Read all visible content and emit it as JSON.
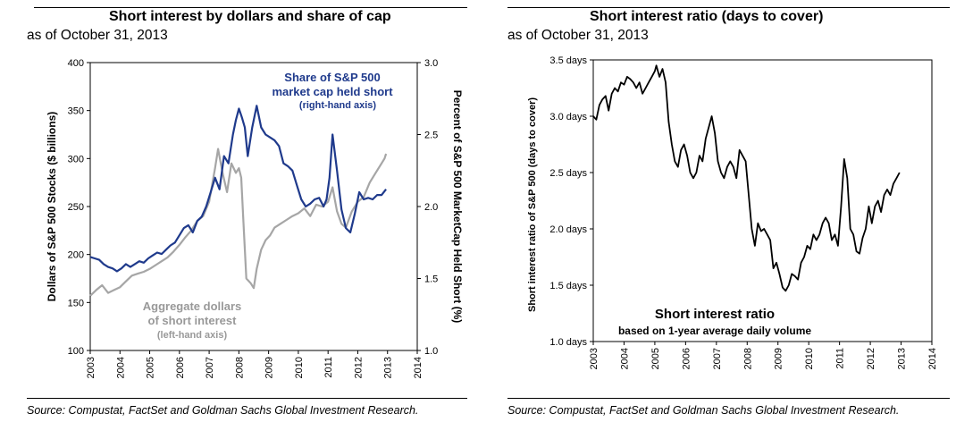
{
  "left_panel": {
    "title": "Short interest by dollars and share of cap",
    "subtitle": "as of October 31, 2013",
    "source": "Source: Compustat, FactSet and Goldman Sachs Global Investment Research."
  },
  "right_panel": {
    "title": "Short interest ratio (days to cover)",
    "subtitle": "as of October 31, 2013",
    "source": "Source: Compustat, FactSet and Goldman Sachs Global Investment Research."
  },
  "colors": {
    "navy": "#1f3a8c",
    "gray": "#a6a6a6",
    "black": "#000000"
  },
  "chart_data": [
    {
      "type": "line",
      "title": "Short interest by dollars and share of cap",
      "xlabel": "",
      "ylabel": "Dollars of S&P 500 Stocks ($ billions)",
      "y2label": "Percent of S&P 500 MarketCap Held Short (%)",
      "xlim": [
        2003,
        2014
      ],
      "ylim": [
        100,
        400
      ],
      "y2lim": [
        1.0,
        3.0
      ],
      "xticks": [
        "2003",
        "2004",
        "2005",
        "2006",
        "2007",
        "2008",
        "2009",
        "2010",
        "2011",
        "2012",
        "2013",
        "2014"
      ],
      "yticks": [
        "100",
        "150",
        "200",
        "250",
        "300",
        "350",
        "400"
      ],
      "y2ticks": [
        "1.0",
        "1.5",
        "2.0",
        "2.5",
        "3.0"
      ],
      "grid": false,
      "annotations": {
        "share_l1": "Share of S&P 500",
        "share_l2": "market cap held short",
        "share_l3": "(right-hand axis)",
        "agg_l1": "Aggregate dollars",
        "agg_l2": "of short interest",
        "agg_l3": "(left-hand axis)"
      },
      "series": [
        {
          "name": "Share of S&P 500 market cap held short",
          "axis": "right",
          "color": "#1f3a8c",
          "x": [
            2003.0,
            2003.15,
            2003.3,
            2003.45,
            2003.6,
            2003.75,
            2003.9,
            2004.05,
            2004.2,
            2004.35,
            2004.5,
            2004.65,
            2004.8,
            2004.95,
            2005.1,
            2005.25,
            2005.4,
            2005.55,
            2005.7,
            2005.85,
            2006.0,
            2006.15,
            2006.3,
            2006.45,
            2006.6,
            2006.75,
            2006.9,
            2007.05,
            2007.2,
            2007.35,
            2007.5,
            2007.65,
            2007.8,
            2007.9,
            2008.0,
            2008.1,
            2008.2,
            2008.3,
            2008.45,
            2008.6,
            2008.75,
            2008.9,
            2009.05,
            2009.2,
            2009.35,
            2009.5,
            2009.65,
            2009.8,
            2009.95,
            2010.1,
            2010.25,
            2010.4,
            2010.55,
            2010.7,
            2010.85,
            2010.95,
            2011.05,
            2011.15,
            2011.3,
            2011.45,
            2011.6,
            2011.75,
            2011.9,
            2012.05,
            2012.2,
            2012.35,
            2012.5,
            2012.65,
            2012.8,
            2012.95
          ],
          "values": [
            1.65,
            1.64,
            1.63,
            1.6,
            1.58,
            1.57,
            1.55,
            1.57,
            1.6,
            1.58,
            1.6,
            1.62,
            1.61,
            1.64,
            1.66,
            1.68,
            1.67,
            1.7,
            1.73,
            1.75,
            1.8,
            1.85,
            1.87,
            1.82,
            1.9,
            1.93,
            2.0,
            2.1,
            2.2,
            2.12,
            2.35,
            2.3,
            2.5,
            2.6,
            2.68,
            2.62,
            2.55,
            2.35,
            2.55,
            2.7,
            2.55,
            2.5,
            2.48,
            2.46,
            2.42,
            2.3,
            2.28,
            2.25,
            2.15,
            2.05,
            2.0,
            2.02,
            2.05,
            2.06,
            2.0,
            2.05,
            2.2,
            2.5,
            2.25,
            1.98,
            1.85,
            1.82,
            1.95,
            2.1,
            2.05,
            2.06,
            2.05,
            2.08,
            2.08,
            2.12
          ]
        },
        {
          "name": "Aggregate dollars of short interest",
          "axis": "left",
          "color": "#a6a6a6",
          "x": [
            2003.0,
            2003.2,
            2003.4,
            2003.6,
            2003.8,
            2004.0,
            2004.2,
            2004.4,
            2004.6,
            2004.8,
            2005.0,
            2005.2,
            2005.4,
            2005.6,
            2005.8,
            2006.0,
            2006.2,
            2006.4,
            2006.6,
            2006.8,
            2007.0,
            2007.2,
            2007.3,
            2007.45,
            2007.6,
            2007.75,
            2007.9,
            2008.0,
            2008.08,
            2008.15,
            2008.25,
            2008.4,
            2008.5,
            2008.6,
            2008.75,
            2008.9,
            2009.05,
            2009.2,
            2009.4,
            2009.6,
            2009.8,
            2010.0,
            2010.2,
            2010.4,
            2010.6,
            2010.8,
            2011.0,
            2011.15,
            2011.3,
            2011.45,
            2011.6,
            2011.8,
            2012.0,
            2012.2,
            2012.4,
            2012.6,
            2012.8,
            2012.9,
            2012.95
          ],
          "values": [
            157,
            163,
            168,
            160,
            163,
            166,
            172,
            178,
            180,
            182,
            185,
            189,
            193,
            197,
            203,
            210,
            218,
            225,
            235,
            240,
            255,
            290,
            310,
            285,
            265,
            295,
            285,
            290,
            280,
            235,
            175,
            170,
            165,
            185,
            205,
            215,
            220,
            228,
            232,
            236,
            240,
            243,
            248,
            240,
            252,
            250,
            255,
            270,
            245,
            232,
            228,
            245,
            255,
            260,
            275,
            285,
            295,
            300,
            305
          ]
        }
      ]
    },
    {
      "type": "line",
      "title": "Short interest ratio (days to cover)",
      "xlabel": "",
      "ylabel": "Short interest ratio of S&P 500 (days to cover)",
      "xlim": [
        2003,
        2014
      ],
      "ylim": [
        1.0,
        3.5
      ],
      "xticks": [
        "2003",
        "2004",
        "2005",
        "2006",
        "2007",
        "2008",
        "2009",
        "2010",
        "2011",
        "2012",
        "2013",
        "2014"
      ],
      "yticks": [
        "1.0 days",
        "1.5 days",
        "2.0 days",
        "2.5 days",
        "3.0 days",
        "3.5 days"
      ],
      "grid": false,
      "annotations": {
        "box_title": "Short interest ratio",
        "box_sub": "based on 1-year  average  daily volume"
      },
      "series": [
        {
          "name": "Short interest ratio",
          "color": "#000000",
          "x": [
            2003.0,
            2003.1,
            2003.2,
            2003.3,
            2003.4,
            2003.5,
            2003.6,
            2003.7,
            2003.8,
            2003.9,
            2004.0,
            2004.1,
            2004.2,
            2004.3,
            2004.4,
            2004.5,
            2004.6,
            2004.7,
            2004.8,
            2004.9,
            2005.0,
            2005.05,
            2005.15,
            2005.25,
            2005.35,
            2005.45,
            2005.55,
            2005.65,
            2005.75,
            2005.85,
            2005.95,
            2006.05,
            2006.15,
            2006.25,
            2006.35,
            2006.45,
            2006.55,
            2006.65,
            2006.75,
            2006.85,
            2006.95,
            2007.05,
            2007.15,
            2007.25,
            2007.35,
            2007.45,
            2007.55,
            2007.65,
            2007.75,
            2007.85,
            2007.95,
            2008.05,
            2008.15,
            2008.25,
            2008.35,
            2008.45,
            2008.55,
            2008.65,
            2008.75,
            2008.85,
            2008.95,
            2009.05,
            2009.15,
            2009.25,
            2009.35,
            2009.45,
            2009.55,
            2009.65,
            2009.75,
            2009.85,
            2009.95,
            2010.05,
            2010.15,
            2010.25,
            2010.35,
            2010.45,
            2010.55,
            2010.65,
            2010.75,
            2010.85,
            2010.95,
            2011.05,
            2011.15,
            2011.25,
            2011.35,
            2011.45,
            2011.55,
            2011.65,
            2011.75,
            2011.85,
            2011.95,
            2012.05,
            2012.15,
            2012.25,
            2012.35,
            2012.45,
            2012.55,
            2012.65,
            2012.75,
            2012.85,
            2012.95
          ],
          "values": [
            3.0,
            2.97,
            3.1,
            3.15,
            3.18,
            3.05,
            3.2,
            3.25,
            3.22,
            3.3,
            3.28,
            3.35,
            3.33,
            3.3,
            3.25,
            3.3,
            3.2,
            3.25,
            3.3,
            3.35,
            3.4,
            3.45,
            3.35,
            3.42,
            3.3,
            2.95,
            2.75,
            2.6,
            2.55,
            2.7,
            2.75,
            2.65,
            2.5,
            2.45,
            2.5,
            2.65,
            2.6,
            2.8,
            2.9,
            3.0,
            2.85,
            2.6,
            2.5,
            2.45,
            2.55,
            2.6,
            2.55,
            2.45,
            2.7,
            2.65,
            2.6,
            2.3,
            2.0,
            1.85,
            2.05,
            1.98,
            2.0,
            1.95,
            1.9,
            1.65,
            1.7,
            1.6,
            1.48,
            1.45,
            1.5,
            1.6,
            1.58,
            1.55,
            1.7,
            1.75,
            1.85,
            1.82,
            1.95,
            1.9,
            1.95,
            2.05,
            2.1,
            2.05,
            1.9,
            1.95,
            1.85,
            2.2,
            2.62,
            2.45,
            2.0,
            1.95,
            1.8,
            1.78,
            1.92,
            2.0,
            2.2,
            2.05,
            2.2,
            2.25,
            2.15,
            2.3,
            2.35,
            2.3,
            2.4,
            2.45,
            2.5
          ]
        }
      ]
    }
  ]
}
